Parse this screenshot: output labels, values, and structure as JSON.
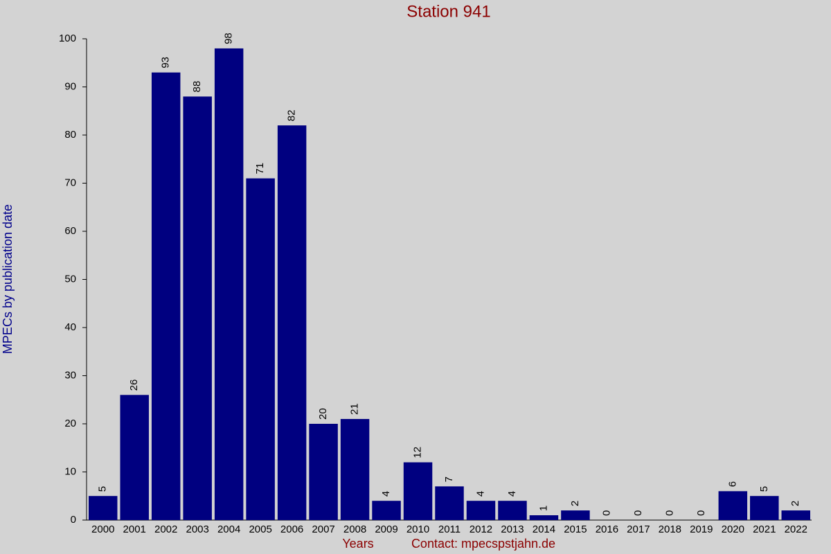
{
  "chart_data": {
    "type": "bar",
    "title": "Station 941",
    "y_label": "MPECs by publication date",
    "x_label": "Years",
    "footer": "Contact: mpecspstjahn.de",
    "categories": [
      "2000",
      "2001",
      "2002",
      "2003",
      "2004",
      "2005",
      "2006",
      "2007",
      "2008",
      "2009",
      "2010",
      "2011",
      "2012",
      "2013",
      "2014",
      "2015",
      "2016",
      "2017",
      "2018",
      "2019",
      "2020",
      "2021",
      "2022"
    ],
    "values": [
      5,
      26,
      93,
      88,
      98,
      71,
      82,
      20,
      21,
      4,
      12,
      7,
      4,
      4,
      1,
      2,
      0,
      0,
      0,
      0,
      6,
      5,
      2
    ],
    "color": "#000080",
    "ylim": [
      0,
      100
    ],
    "yticks": [
      0,
      10,
      20,
      30,
      40,
      50,
      60,
      70,
      80,
      90,
      100
    ],
    "grid": false
  }
}
